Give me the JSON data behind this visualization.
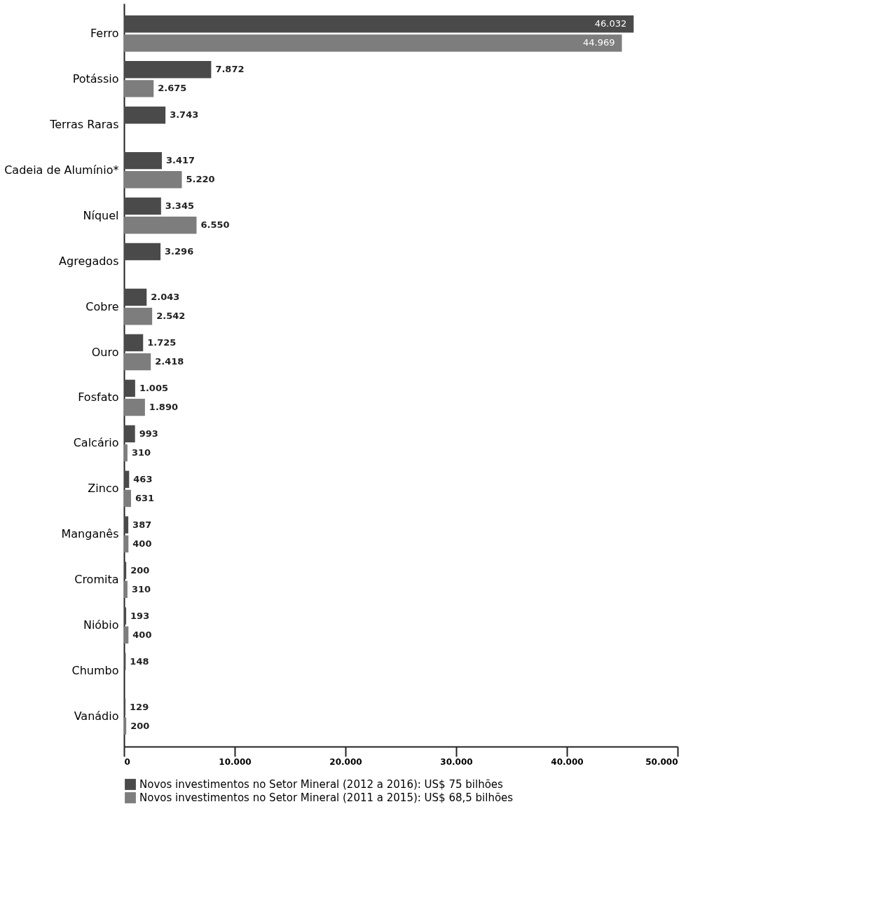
{
  "chart_data": {
    "type": "bar",
    "orientation": "horizontal",
    "categories": [
      "Ferro",
      "Potássio",
      "Terras Raras",
      "Cadeia de Alumínio*",
      "Níquel",
      "Agregados",
      "Cobre",
      "Ouro",
      "Fosfato",
      "Calcário",
      "Zinco",
      "Manganês",
      "Cromita",
      "Nióbio",
      "Chumbo",
      "Vanádio"
    ],
    "series": [
      {
        "name": "Novos investimentos no Setor Mineral (2012 a 2016): US$ 75 bilhões",
        "color": "#4a4a4a",
        "values": [
          46032,
          7872,
          3743,
          3417,
          3345,
          3296,
          2043,
          1725,
          1005,
          993,
          463,
          387,
          200,
          193,
          148,
          129
        ],
        "value_labels": [
          "46.032",
          "7.872",
          "3.743",
          "3.417",
          "3.345",
          "3.296",
          "2.043",
          "1.725",
          "1.005",
          "993",
          "463",
          "387",
          "200",
          "193",
          "148",
          "129"
        ]
      },
      {
        "name": "Novos investimentos no Setor Mineral (2011 a 2015): US$ 68,5 bilhões",
        "color": "#7d7d7d",
        "values": [
          44969,
          2675,
          null,
          5220,
          6550,
          null,
          2542,
          2418,
          1890,
          310,
          631,
          400,
          310,
          400,
          null,
          200
        ],
        "value_labels": [
          "44.969",
          "2.675",
          null,
          "5.220",
          "6.550",
          null,
          "2.542",
          "2.418",
          "1.890",
          "310",
          "631",
          "400",
          "310",
          "400",
          null,
          "200"
        ]
      }
    ],
    "xlim": [
      0,
      50000
    ],
    "xticks": [
      0,
      {
        "value": 10000,
        "label": "10.000"
      },
      {
        "value": 20000,
        "label": "20.000"
      },
      {
        "value": 30000,
        "label": "30.000"
      },
      {
        "value": 40000,
        "label": "40.000"
      },
      {
        "value": 50000,
        "label": "50.000"
      }
    ],
    "grid": false,
    "legend": "bottom"
  }
}
